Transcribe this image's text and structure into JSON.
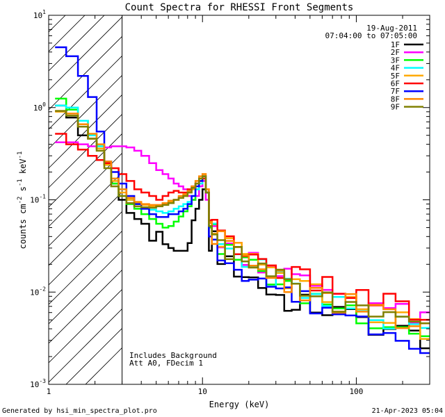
{
  "chart_data": {
    "type": "line",
    "title": "Count Spectra for RHESSI Front Segments",
    "xlabel": "Energy (keV)",
    "ylabel_parts": {
      "a": "counts cm",
      "b": "-2",
      "c": " s",
      "d": "-1",
      "e": " keV",
      "f": "-1"
    },
    "xscale": "log",
    "yscale": "log",
    "xlim": [
      1.0,
      300.0
    ],
    "ylim": [
      0.001,
      10.0
    ],
    "x_ticks": [
      {
        "value": 1,
        "label": "1"
      },
      {
        "value": 10,
        "label": "10"
      },
      {
        "value": 100,
        "label": "100"
      }
    ],
    "y_ticks": [
      {
        "value": 0.001,
        "base": "10",
        "exp": "-3"
      },
      {
        "value": 0.01,
        "base": "10",
        "exp": "-2"
      },
      {
        "value": 0.1,
        "base": "10",
        "exp": "-1"
      },
      {
        "value": 1,
        "base": "10",
        "exp": "0"
      },
      {
        "value": 10,
        "base": "10",
        "exp": "1"
      }
    ],
    "shaded_region": {
      "x_from": 1.0,
      "x_to": 3.0,
      "style": "hatched"
    },
    "date": "19-Aug-2011",
    "time_range": "07:04:00 to 07:05:00",
    "annotations": [
      "Includes Background",
      "Att A0, FDecim 1"
    ],
    "legend_position": "top-right",
    "energy_edges": [
      1.1,
      1.3,
      1.55,
      1.8,
      2.05,
      2.3,
      2.55,
      2.85,
      3.2,
      3.6,
      4.0,
      4.5,
      5.0,
      5.5,
      6.0,
      6.5,
      7.0,
      7.5,
      8.0,
      8.5,
      9.0,
      9.5,
      10.0,
      10.5,
      11.0,
      11.5,
      12.5,
      14.0,
      16.0,
      18.0,
      20.0,
      23.0,
      26.0,
      30.0,
      34.0,
      38.0,
      43.0,
      50.0,
      60.0,
      70.0,
      85.0,
      100.0,
      120.0,
      150.0,
      180.0,
      220.0,
      260.0,
      300.0
    ],
    "series": [
      {
        "name": "1F",
        "color": "#000000",
        "values": [
          1.05,
          0.78,
          0.5,
          0.46,
          0.36,
          0.24,
          0.15,
          0.1,
          0.072,
          0.062,
          0.055,
          0.036,
          0.045,
          0.033,
          0.03,
          0.028,
          0.028,
          0.028,
          0.034,
          0.06,
          0.08,
          0.1,
          0.13,
          0.12,
          0.028,
          0.04,
          0.025,
          0.02,
          0.018,
          0.016,
          0.014,
          0.012,
          0.01,
          0.009,
          0.008,
          0.006,
          0.0075,
          0.007,
          0.0065,
          0.006,
          0.0055,
          0.005,
          0.0045,
          0.004,
          0.0037,
          0.0034,
          0.0032
        ]
      },
      {
        "name": "2F",
        "color": "#ff00ff",
        "values": [
          0.42,
          0.42,
          0.4,
          0.38,
          0.36,
          0.37,
          0.38,
          0.38,
          0.37,
          0.34,
          0.3,
          0.25,
          0.21,
          0.19,
          0.17,
          0.15,
          0.14,
          0.13,
          0.11,
          0.1,
          0.11,
          0.14,
          0.16,
          0.1,
          0.06,
          0.05,
          0.038,
          0.033,
          0.03,
          0.027,
          0.025,
          0.022,
          0.02,
          0.018,
          0.016,
          0.014,
          0.013,
          0.012,
          0.011,
          0.01,
          0.0092,
          0.0084,
          0.0076,
          0.0068,
          0.006,
          0.0054,
          0.0048
        ]
      },
      {
        "name": "3F",
        "color": "#00ff00",
        "values": [
          1.25,
          0.95,
          0.72,
          0.5,
          0.38,
          0.24,
          0.15,
          0.11,
          0.09,
          0.08,
          0.07,
          0.062,
          0.055,
          0.05,
          0.052,
          0.058,
          0.066,
          0.075,
          0.085,
          0.1,
          0.13,
          0.16,
          0.18,
          0.12,
          0.05,
          0.043,
          0.034,
          0.028,
          0.024,
          0.021,
          0.019,
          0.017,
          0.015,
          0.013,
          0.012,
          0.01,
          0.0095,
          0.0088,
          0.008,
          0.0072,
          0.0066,
          0.006,
          0.0054,
          0.0049,
          0.0044,
          0.004,
          0.0036
        ]
      },
      {
        "name": "4F",
        "color": "#00ffff",
        "values": [
          1.05,
          1.0,
          0.72,
          0.5,
          0.38,
          0.26,
          0.17,
          0.13,
          0.1,
          0.09,
          0.08,
          0.078,
          0.075,
          0.072,
          0.075,
          0.08,
          0.085,
          0.09,
          0.095,
          0.11,
          0.13,
          0.15,
          0.17,
          0.12,
          0.052,
          0.044,
          0.035,
          0.029,
          0.025,
          0.022,
          0.02,
          0.018,
          0.016,
          0.014,
          0.013,
          0.011,
          0.01,
          0.0092,
          0.0084,
          0.0076,
          0.0069,
          0.0062,
          0.0056,
          0.005,
          0.0045,
          0.0041,
          0.0037
        ]
      },
      {
        "name": "5F",
        "color": "#ffaa00",
        "values": [
          0.9,
          0.82,
          0.62,
          0.46,
          0.36,
          0.24,
          0.16,
          0.12,
          0.1,
          0.092,
          0.088,
          0.085,
          0.086,
          0.09,
          0.095,
          0.1,
          0.105,
          0.11,
          0.12,
          0.13,
          0.15,
          0.17,
          0.19,
          0.13,
          0.058,
          0.048,
          0.038,
          0.031,
          0.027,
          0.024,
          0.021,
          0.019,
          0.017,
          0.015,
          0.013,
          0.012,
          0.011,
          0.0098,
          0.009,
          0.0082,
          0.0074,
          0.0067,
          0.0061,
          0.0055,
          0.005,
          0.0045,
          0.0041
        ]
      },
      {
        "name": "6F",
        "color": "#ff0000",
        "values": [
          0.52,
          0.4,
          0.35,
          0.3,
          0.27,
          0.25,
          0.22,
          0.19,
          0.16,
          0.13,
          0.12,
          0.11,
          0.1,
          0.11,
          0.12,
          0.125,
          0.12,
          0.12,
          0.13,
          0.14,
          0.15,
          0.16,
          0.17,
          0.12,
          0.06,
          0.05,
          0.04,
          0.034,
          0.03,
          0.027,
          0.024,
          0.022,
          0.02,
          0.018,
          0.016,
          0.015,
          0.014,
          0.013,
          0.012,
          0.011,
          0.01,
          0.0092,
          0.0084,
          0.0076,
          0.0068,
          0.006,
          0.0054
        ]
      },
      {
        "name": "7F",
        "color": "#0000ff",
        "values": [
          4.5,
          3.6,
          2.2,
          1.3,
          0.55,
          0.26,
          0.2,
          0.15,
          0.11,
          0.09,
          0.08,
          0.07,
          0.065,
          0.065,
          0.07,
          0.07,
          0.075,
          0.08,
          0.09,
          0.11,
          0.14,
          0.16,
          0.18,
          0.12,
          0.04,
          0.032,
          0.027,
          0.023,
          0.02,
          0.018,
          0.016,
          0.014,
          0.012,
          0.011,
          0.01,
          0.009,
          0.0083,
          0.0076,
          0.0069,
          0.0062,
          0.0056,
          0.005,
          0.0045,
          0.0041,
          0.0037,
          0.0033,
          0.003
        ]
      },
      {
        "name": "8F",
        "color": "#ff8800",
        "values": [
          0.92,
          0.86,
          0.66,
          0.52,
          0.4,
          0.26,
          0.17,
          0.13,
          0.105,
          0.095,
          0.09,
          0.088,
          0.088,
          0.092,
          0.098,
          0.1,
          0.11,
          0.115,
          0.125,
          0.14,
          0.16,
          0.18,
          0.19,
          0.13,
          0.056,
          0.046,
          0.037,
          0.03,
          0.026,
          0.023,
          0.021,
          0.018,
          0.016,
          0.015,
          0.013,
          0.012,
          0.011,
          0.0099,
          0.009,
          0.0082,
          0.0075,
          0.0068,
          0.0061,
          0.0055,
          0.005,
          0.0045,
          0.0041
        ]
      },
      {
        "name": "9F",
        "color": "#808000",
        "values": [
          0.92,
          0.82,
          0.62,
          0.46,
          0.34,
          0.22,
          0.14,
          0.11,
          0.092,
          0.085,
          0.083,
          0.082,
          0.085,
          0.088,
          0.092,
          0.1,
          0.105,
          0.11,
          0.12,
          0.135,
          0.15,
          0.17,
          0.18,
          0.12,
          0.052,
          0.044,
          0.035,
          0.029,
          0.025,
          0.022,
          0.02,
          0.018,
          0.016,
          0.014,
          0.013,
          0.011,
          0.01,
          0.0092,
          0.0084,
          0.0076,
          0.0069,
          0.0062,
          0.0056,
          0.005,
          0.0045,
          0.0041,
          0.0037
        ]
      }
    ]
  },
  "footer": {
    "generated_by": "Generated by hsi_min_spectra_plot.pro",
    "timestamp": "21-Apr-2023 05:04"
  }
}
